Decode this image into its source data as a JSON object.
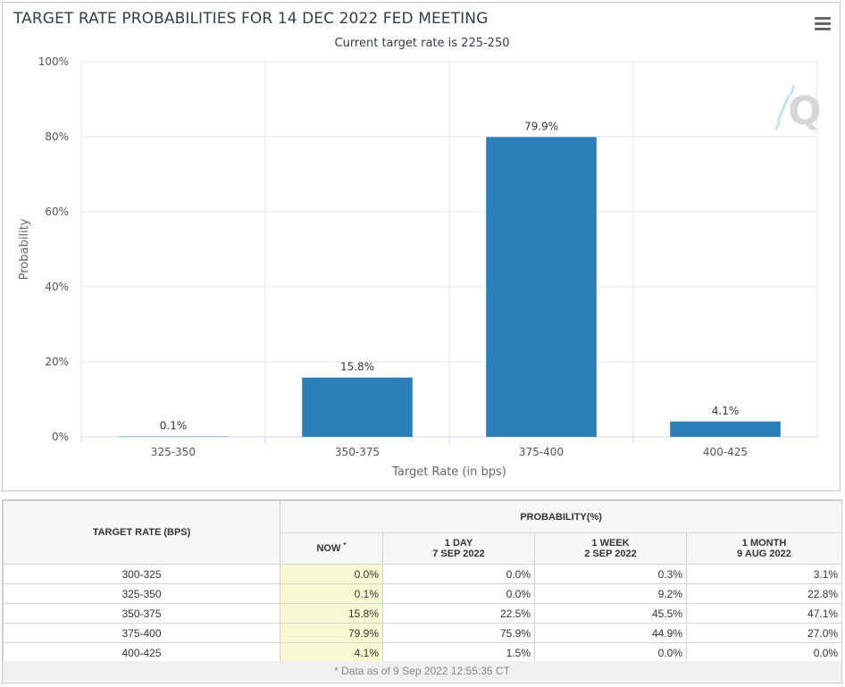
{
  "chart": {
    "title": "TARGET RATE PROBABILITIES FOR 14 DEC 2022 FED MEETING",
    "subtitle": "Current target rate is 225-250",
    "watermark": "Q"
  },
  "chart_data": {
    "type": "bar",
    "title": "TARGET RATE PROBABILITIES FOR 14 DEC 2022 FED MEETING",
    "subtitle": "Current target rate is 225-250",
    "categories": [
      "325-350",
      "350-375",
      "375-400",
      "400-425"
    ],
    "values": [
      0.1,
      15.8,
      79.9,
      4.1
    ],
    "data_labels": [
      "0.1%",
      "15.8%",
      "79.9%",
      "4.1%"
    ],
    "xlabel": "Target Rate (in bps)",
    "ylabel": "Probability",
    "ylim": [
      0,
      100
    ],
    "yticks": [
      0,
      20,
      40,
      60,
      80,
      100
    ],
    "ytick_labels": [
      "0%",
      "20%",
      "40%",
      "60%",
      "80%",
      "100%"
    ],
    "grid": true,
    "bar_color": "#2b7fb8"
  },
  "table": {
    "rate_header": "TARGET RATE (BPS)",
    "prob_header": "PROBABILITY(%)",
    "col_now": "NOW",
    "col_now_mark": "*",
    "col_1day": "1 DAY",
    "col_1day_date": "7 SEP 2022",
    "col_1week": "1 WEEK",
    "col_1week_date": "2 SEP 2022",
    "col_1month": "1 MONTH",
    "col_1month_date": "9 AUG 2022",
    "rows": [
      {
        "rate": "300-325",
        "now": "0.0%",
        "day": "0.0%",
        "week": "0.3%",
        "month": "3.1%"
      },
      {
        "rate": "325-350",
        "now": "0.1%",
        "day": "0.0%",
        "week": "9.2%",
        "month": "22.8%"
      },
      {
        "rate": "350-375",
        "now": "15.8%",
        "day": "22.5%",
        "week": "45.5%",
        "month": "47.1%"
      },
      {
        "rate": "375-400",
        "now": "79.9%",
        "day": "75.9%",
        "week": "44.9%",
        "month": "27.0%"
      },
      {
        "rate": "400-425",
        "now": "4.1%",
        "day": "1.5%",
        "week": "0.0%",
        "month": "0.0%"
      }
    ],
    "footnote": "* Data as of 9 Sep 2022 12:55:35 CT"
  }
}
